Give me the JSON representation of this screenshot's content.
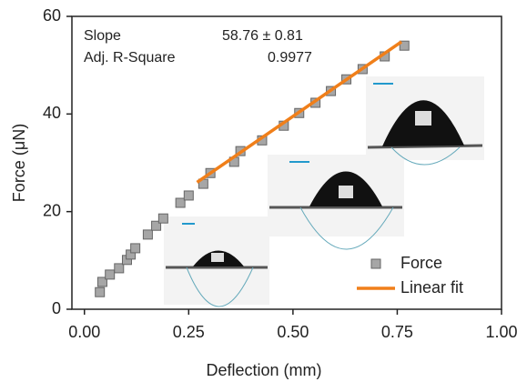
{
  "chart_data": {
    "type": "scatter",
    "x_label": "Deflection (mm)",
    "y_label": "Force (μN)",
    "xlim": [
      -0.03,
      1.0
    ],
    "ylim": [
      0,
      60
    ],
    "xticks": [
      {
        "value": 0,
        "label": "0.00"
      },
      {
        "value": 0.25,
        "label": "0.25"
      },
      {
        "value": 0.5,
        "label": "0.50"
      },
      {
        "value": 0.75,
        "label": "0.75"
      },
      {
        "value": 1,
        "label": "1.00"
      }
    ],
    "yticks": [
      0,
      20,
      40,
      60
    ],
    "legend": "lower right",
    "annotations": [
      [
        "Slope",
        "58.76 ± 0.81"
      ],
      [
        "Adj. R-Square",
        "0.9977"
      ]
    ],
    "series": [
      {
        "name": "Force",
        "color": "#a6a6a6",
        "mode": "markers",
        "x": [
          0.037,
          0.043,
          0.061,
          0.083,
          0.102,
          0.111,
          0.122,
          0.152,
          0.172,
          0.189,
          0.23,
          0.25,
          0.285,
          0.302,
          0.359,
          0.374,
          0.426,
          0.478,
          0.515,
          0.554,
          0.591,
          0.628,
          0.667,
          0.72,
          0.767
        ],
        "values": [
          3.5,
          5.6,
          7.1,
          8.4,
          10.1,
          11.2,
          12.5,
          15.3,
          17.1,
          18.6,
          21.8,
          23.3,
          25.7,
          27.9,
          30.2,
          32.4,
          34.6,
          37.6,
          40.2,
          42.3,
          44.7,
          47.1,
          49.2,
          51.8,
          54.0
        ]
      },
      {
        "name": "Linear fit",
        "color": "#f07f1a",
        "mode": "line",
        "x": [
          0.27,
          0.76
        ],
        "values": [
          26.0,
          54.8
        ]
      }
    ]
  }
}
